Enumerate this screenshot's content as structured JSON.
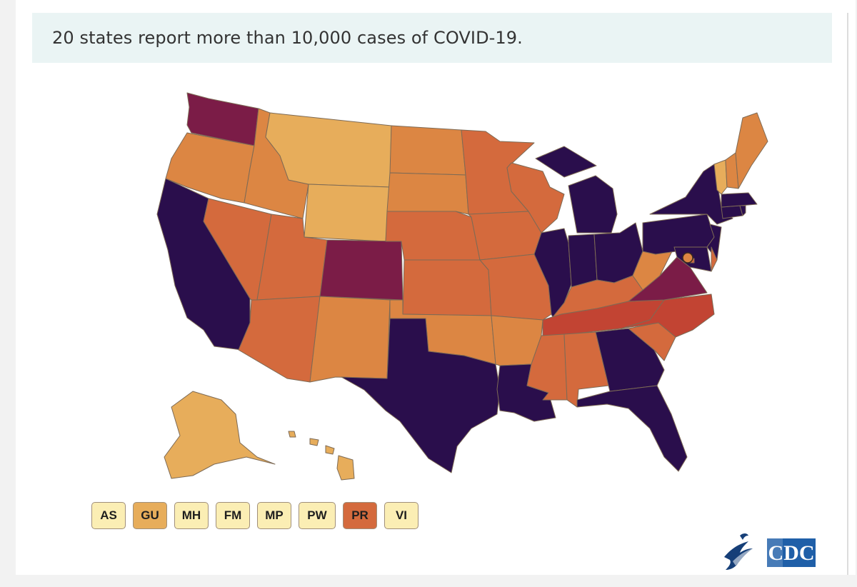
{
  "headline": "20 states report more than 10,000 cases of COVID-19.",
  "legend_colors": {
    "lowest": "#fbeeb4",
    "low": "#e7ad5b",
    "mid_low": "#dc8643",
    "mid": "#d46a3d",
    "mid_high": "#c24433",
    "high": "#7b1c47",
    "highest": "#2a0e4c"
  },
  "territories": [
    {
      "code": "AS",
      "level": "lowest"
    },
    {
      "code": "GU",
      "level": "low"
    },
    {
      "code": "MH",
      "level": "lowest"
    },
    {
      "code": "FM",
      "level": "lowest"
    },
    {
      "code": "MP",
      "level": "lowest"
    },
    {
      "code": "PW",
      "level": "lowest"
    },
    {
      "code": "PR",
      "level": "mid"
    },
    {
      "code": "VI",
      "level": "lowest"
    }
  ],
  "logos": {
    "hhs": "hhs-eagle-icon",
    "cdc": "CDC"
  }
}
